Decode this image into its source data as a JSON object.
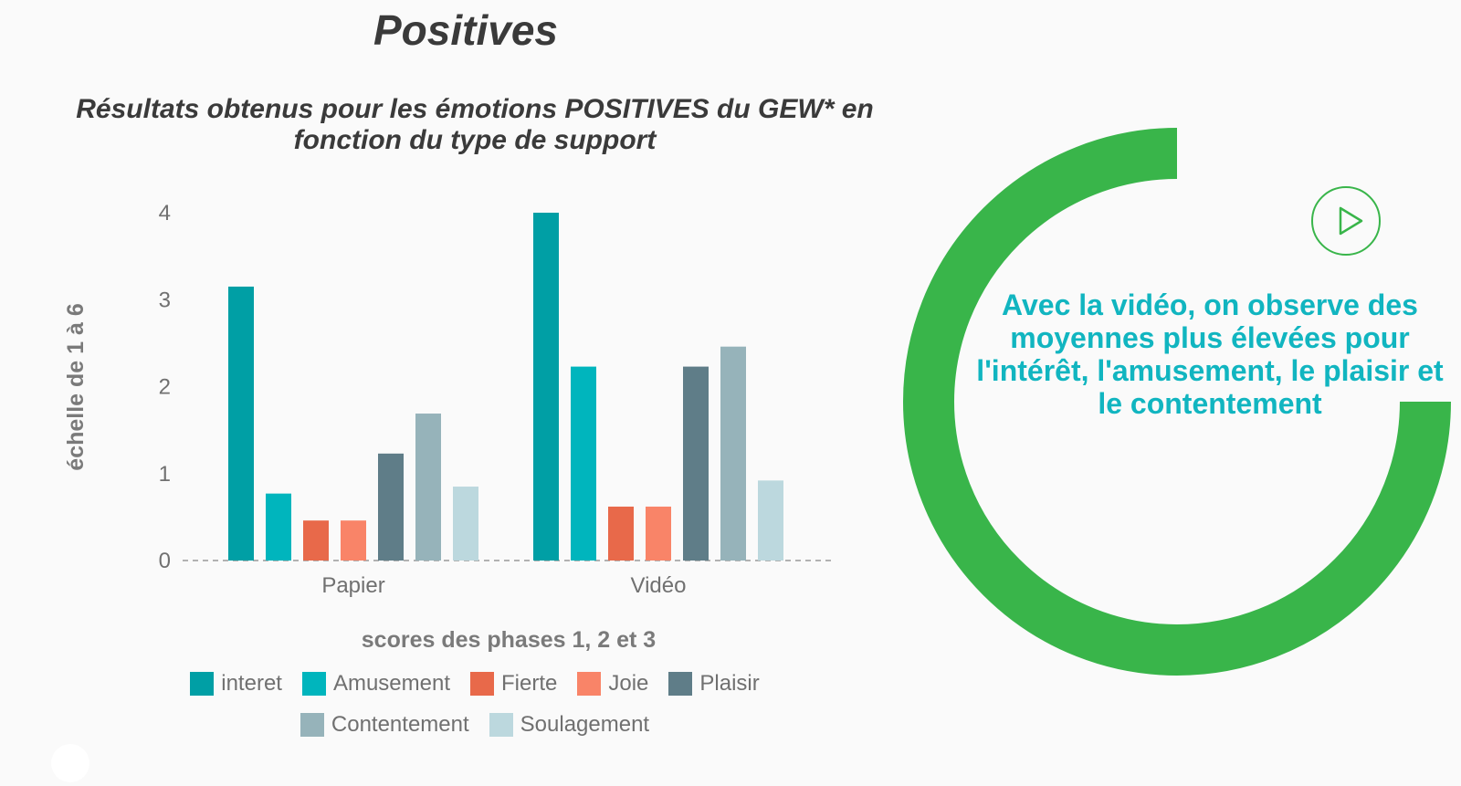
{
  "slide": {
    "title": "Positives",
    "callout_text": "Avec la vidéo, on observe des moyennes plus élevées pour l'intérêt, l'amusement, le plaisir et le contentement"
  },
  "colors": {
    "ring": "#39b54a",
    "callout": "#11b5c0"
  },
  "icons": {
    "play": "play-icon"
  },
  "chart_data": {
    "type": "bar",
    "title": "Résultats obtenus pour les émotions POSITIVES du GEW* en fonction du type de support",
    "xlabel": "scores des phases 1, 2 et 3",
    "ylabel": "échelle de 1 à 6",
    "ylim": [
      0,
      4
    ],
    "yticks": [
      "0",
      "1",
      "2",
      "3",
      "4"
    ],
    "categories": [
      "Papier",
      "Vidéo"
    ],
    "legend_position": "bottom",
    "series": [
      {
        "name": "interet",
        "color": "#009fa5",
        "values": [
          3.15,
          4.0
        ]
      },
      {
        "name": "Amusement",
        "color": "#00b5bd",
        "values": [
          0.77,
          2.23
        ]
      },
      {
        "name": "Fierte",
        "color": "#e8694a",
        "values": [
          0.46,
          0.62
        ]
      },
      {
        "name": "Joie",
        "color": "#f98468",
        "values": [
          0.46,
          0.62
        ]
      },
      {
        "name": "Plaisir",
        "color": "#5f7d88",
        "values": [
          1.23,
          2.23
        ]
      },
      {
        "name": "Contentement",
        "color": "#96b3ba",
        "values": [
          1.69,
          2.46
        ]
      },
      {
        "name": "Soulagement",
        "color": "#bcd8de",
        "values": [
          0.85,
          0.92
        ]
      }
    ]
  }
}
